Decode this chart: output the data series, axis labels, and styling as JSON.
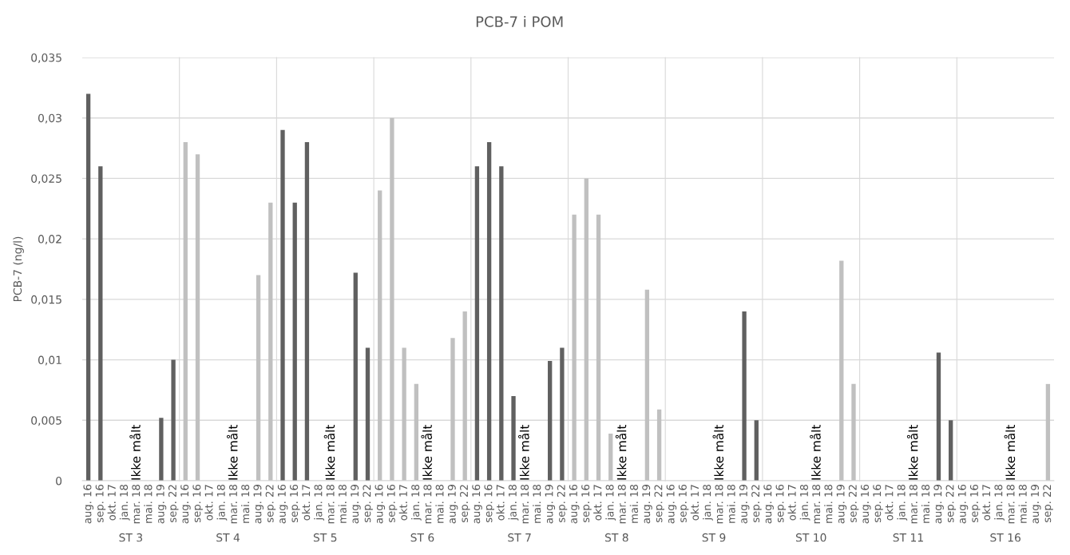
{
  "chart_data": [
    {
      "type": "bar",
      "ylabel": "PCB-7 (ng/l)",
      "xlabel": "ST 3",
      "categories": [
        "aug. 16",
        "sep. 16",
        "okt. 17",
        "jan. 18",
        "mar. 18",
        "mai. 18",
        "aug. 19",
        "sep. 22"
      ],
      "color": "#606060",
      "values": [
        0.032,
        0.026,
        null,
        null,
        null,
        null,
        0.0052,
        0.01
      ],
      "annotations": [
        "Ikke målt"
      ],
      "ylim": [
        0,
        0.035
      ],
      "yticks": [
        0,
        {
          "value": 0.005,
          "label": "0,005"
        },
        {
          "value": 0.01,
          "label": "0,01"
        },
        {
          "value": 0.015,
          "label": "0,015"
        },
        {
          "value": 0.02,
          "label": "0,02"
        },
        {
          "value": 0.025,
          "label": "0,025"
        },
        {
          "value": 0.03,
          "label": "0,03"
        },
        {
          "value": 0.035,
          "label": "0,035"
        }
      ],
      "grid": "y"
    },
    {
      "type": "bar",
      "xlabel": "ST 4",
      "categories": [
        "aug. 16",
        "sep. 16",
        "okt. 17",
        "jan. 18",
        "mar. 18",
        "mai. 18",
        "aug. 19",
        "sep. 22"
      ],
      "color": "#c0c0c0",
      "values": [
        0.028,
        0.027,
        null,
        null,
        null,
        null,
        0.017,
        0.023
      ],
      "annotations": [
        "Ikke målt"
      ],
      "ylim": [
        0,
        0.035
      ],
      "yticks": [
        0,
        0.005,
        0.01,
        0.015,
        0.02,
        0.025,
        0.03,
        0.035
      ],
      "grid": "y",
      "tick_labels": "x"
    },
    {
      "type": "bar",
      "xlabel": "ST 5",
      "categories": [
        "aug. 16",
        "sep. 16",
        "okt. 17",
        "jan. 18",
        "mar. 18",
        "mai. 18",
        "aug. 19",
        "sep. 22"
      ],
      "color": "#606060",
      "values": [
        0.029,
        0.023,
        0.028,
        null,
        null,
        null,
        0.0172,
        0.011
      ],
      "annotations": [
        "Ikke målt"
      ],
      "ylim": [
        0,
        0.035
      ],
      "yticks": [
        0,
        0.005,
        0.01,
        0.015,
        0.02,
        0.025,
        0.03,
        0.035
      ],
      "grid": "y",
      "tick_labels": "x"
    },
    {
      "type": "bar",
      "xlabel": "ST 6",
      "categories": [
        "aug. 16",
        "sep. 16",
        "okt. 17",
        "jan. 18",
        "mar. 18",
        "mai. 18",
        "aug. 19",
        "sep. 22"
      ],
      "color": "#c0c0c0",
      "values": [
        0.024,
        0.03,
        0.011,
        0.008,
        null,
        null,
        0.0118,
        0.014
      ],
      "annotations": [
        "Ikke målt"
      ],
      "ylim": [
        0,
        0.035
      ],
      "yticks": [
        0,
        0.005,
        0.01,
        0.015,
        0.02,
        0.025,
        0.03,
        0.035
      ],
      "grid": "y",
      "tick_labels": "x"
    },
    {
      "type": "bar",
      "title": "PCB-7 i POM",
      "xlabel": "ST 7",
      "categories": [
        "aug. 16",
        "sep. 16",
        "okt. 17",
        "jan. 18",
        "mar. 18",
        "mai. 18",
        "aug. 19",
        "sep. 22"
      ],
      "color": "#606060",
      "values": [
        0.026,
        0.028,
        0.026,
        0.007,
        null,
        null,
        0.0099,
        0.011
      ],
      "annotations": [
        "Ikke målt"
      ],
      "ylim": [
        0,
        0.035
      ],
      "yticks": [
        0,
        0.005,
        0.01,
        0.015,
        0.02,
        0.025,
        0.03,
        0.035
      ],
      "grid": "y",
      "tick_labels": "x"
    },
    {
      "type": "bar",
      "xlabel": "ST 8",
      "categories": [
        "aug. 16",
        "sep. 16",
        "okt. 17",
        "jan. 18",
        "mar. 18",
        "mai. 18",
        "aug. 19",
        "sep. 22"
      ],
      "color": "#c0c0c0",
      "values": [
        0.022,
        0.025,
        0.022,
        0.0039,
        null,
        null,
        0.0158,
        0.0059
      ],
      "annotations": [
        "Ikke målt"
      ],
      "ylim": [
        0,
        0.035
      ],
      "yticks": [
        0,
        0.005,
        0.01,
        0.015,
        0.02,
        0.025,
        0.03,
        0.035
      ],
      "grid": "y",
      "tick_labels": "x"
    },
    {
      "type": "bar",
      "xlabel": "ST 9",
      "categories": [
        "aug. 16",
        "sep. 16",
        "okt. 17",
        "jan. 18",
        "mar. 18",
        "mai. 18",
        "aug. 19",
        "sep. 22"
      ],
      "color": "#606060",
      "values": [
        null,
        null,
        null,
        null,
        null,
        null,
        0.014,
        0.005
      ],
      "annotations": [
        "Ikke målt"
      ],
      "ylim": [
        0,
        0.035
      ],
      "yticks": [
        0,
        0.005,
        0.01,
        0.015,
        0.02,
        0.025,
        0.03,
        0.035
      ],
      "grid": "y",
      "tick_labels": "x"
    },
    {
      "type": "bar",
      "xlabel": "ST 10",
      "categories": [
        "aug. 16",
        "sep. 16",
        "okt. 17",
        "jan. 18",
        "mar. 18",
        "mai. 18",
        "aug. 19",
        "sep. 22"
      ],
      "color": "#c0c0c0",
      "values": [
        null,
        null,
        null,
        null,
        null,
        null,
        0.0182,
        0.008
      ],
      "annotations": [
        "Ikke målt"
      ],
      "ylim": [
        0,
        0.035
      ],
      "yticks": [
        0,
        0.005,
        0.01,
        0.015,
        0.02,
        0.025,
        0.03,
        0.035
      ],
      "grid": "y",
      "tick_labels": "x"
    },
    {
      "type": "bar",
      "xlabel": "ST 11",
      "categories": [
        "aug. 16",
        "sep. 16",
        "okt. 17",
        "jan. 18",
        "mar. 18",
        "mai. 18",
        "aug. 19",
        "sep. 22"
      ],
      "color": "#606060",
      "values": [
        null,
        null,
        null,
        null,
        null,
        null,
        0.0106,
        0.005
      ],
      "annotations": [
        "Ikke målt"
      ],
      "ylim": [
        0,
        0.035
      ],
      "yticks": [
        0,
        0.005,
        0.01,
        0.015,
        0.02,
        0.025,
        0.03,
        0.035
      ],
      "grid": "y",
      "tick_labels": "x"
    },
    {
      "type": "bar",
      "xlabel": "ST 16",
      "categories": [
        "aug. 16",
        "sep. 16",
        "okt. 17",
        "jan. 18",
        "mar. 18",
        "mai. 18",
        "aug. 19",
        "sep. 22"
      ],
      "color": "#c0c0c0",
      "values": [
        null,
        null,
        null,
        null,
        null,
        null,
        null,
        0.008
      ],
      "annotations": [
        "Ikke målt"
      ],
      "ylim": [
        0,
        0.035
      ],
      "yticks": [
        0,
        0.005,
        0.01,
        0.015,
        0.02,
        0.025,
        0.03,
        0.035
      ],
      "grid": "y",
      "tick_labels": "x"
    }
  ]
}
